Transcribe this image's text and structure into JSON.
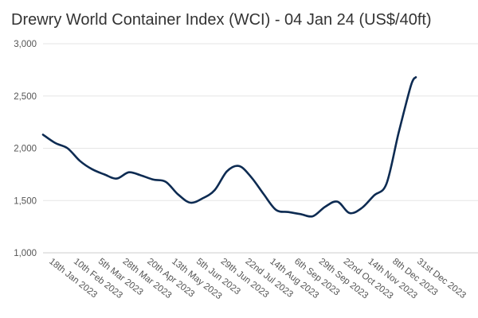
{
  "chart_data": {
    "type": "line",
    "title": "Drewry World Container Index (WCI) - 04 Jan 24 (US$/40ft)",
    "xlabel": "",
    "ylabel": "",
    "ylim": [
      1000,
      3000
    ],
    "y_ticks": [
      1000,
      1500,
      2000,
      2500,
      3000
    ],
    "y_tick_labels": [
      "1,000",
      "1,500",
      "2,000",
      "2,500",
      "3,000"
    ],
    "categories": [
      "18th Jan 2023",
      "10th Feb 2023",
      "5th Mar 2023",
      "28th Mar 2023",
      "20th Apr 2023",
      "13th May 2023",
      "5th Jun 2023",
      "29th Jun 2023",
      "22nd Jul 2023",
      "14th Aug 2023",
      "6th Sep 2023",
      "29th Sep 2023",
      "22nd Oct 2023",
      "14th Nov 2023",
      "8th Dec 2023",
      "31st Dec 2023"
    ],
    "series": [
      {
        "name": "WCI",
        "color": "#0d2b52",
        "x": [
          0,
          0.5,
          1,
          1.5,
          2,
          2.5,
          3,
          3.5,
          4,
          4.5,
          5,
          5.5,
          6,
          6.5,
          7,
          7.5,
          8,
          8.5,
          9,
          9.5,
          10,
          10.5,
          11,
          11.5,
          12,
          12.5,
          13,
          13.5,
          14,
          14.5,
          15,
          15.2
        ],
        "values": [
          2130,
          2050,
          2000,
          1880,
          1800,
          1750,
          1710,
          1770,
          1740,
          1700,
          1680,
          1560,
          1480,
          1520,
          1600,
          1780,
          1830,
          1720,
          1560,
          1410,
          1390,
          1370,
          1350,
          1440,
          1490,
          1380,
          1430,
          1550,
          1660,
          2150,
          2600,
          2680
        ]
      }
    ]
  }
}
